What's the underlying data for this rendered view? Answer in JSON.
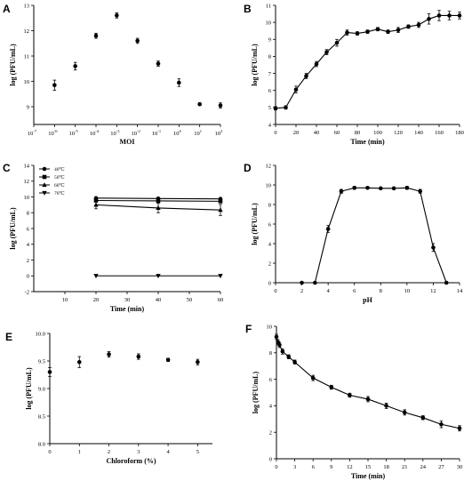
{
  "chart_data": [
    {
      "panel": "A",
      "type": "scatter",
      "xscale": "log",
      "xlabel": "MOI",
      "ylabel": "log (PFU/mL)",
      "xlim": [
        1e-07,
        100
      ],
      "ylim": [
        8.3,
        13
      ],
      "xticks": [
        1e-07,
        1e-06,
        1e-05,
        0.0001,
        0.001,
        0.01,
        0.1,
        1,
        10,
        100
      ],
      "xtick_labels": [
        [
          "10",
          "-7"
        ],
        [
          "10",
          "-6"
        ],
        [
          "10",
          "-5"
        ],
        [
          "10",
          "-4"
        ],
        [
          "10",
          "-3"
        ],
        [
          "10",
          "-2"
        ],
        [
          "10",
          "-1"
        ],
        [
          "10",
          "0"
        ],
        [
          "10",
          "1"
        ],
        [
          "10",
          "2"
        ]
      ],
      "yticks": [
        9,
        10,
        11,
        12,
        13
      ],
      "x": [
        1e-06,
        1e-05,
        0.0001,
        0.001,
        0.01,
        0.1,
        1,
        10,
        100
      ],
      "y": [
        9.85,
        10.6,
        11.8,
        12.6,
        11.6,
        10.7,
        9.95,
        9.1,
        9.05
      ],
      "err": [
        0.2,
        0.15,
        0.1,
        0.1,
        0.1,
        0.1,
        0.15,
        0.05,
        0.1
      ]
    },
    {
      "panel": "B",
      "type": "line",
      "xlabel": "Time (min)",
      "ylabel": "log (PFU/mL)",
      "xlim": [
        0,
        180
      ],
      "ylim": [
        4,
        11
      ],
      "xticks": [
        0,
        20,
        40,
        60,
        80,
        100,
        120,
        140,
        160,
        180
      ],
      "yticks": [
        4,
        5,
        6,
        7,
        8,
        9,
        10,
        11
      ],
      "x": [
        0,
        10,
        20,
        30,
        40,
        50,
        60,
        70,
        80,
        90,
        100,
        110,
        120,
        130,
        140,
        150,
        160,
        170,
        180
      ],
      "y": [
        4.95,
        5.0,
        6.05,
        6.85,
        7.55,
        8.25,
        8.8,
        9.4,
        9.35,
        9.45,
        9.6,
        9.45,
        9.55,
        9.75,
        9.85,
        10.2,
        10.4,
        10.4,
        10.4
      ],
      "err": [
        0.1,
        0.1,
        0.2,
        0.15,
        0.15,
        0.15,
        0.2,
        0.15,
        0.1,
        0.1,
        0.1,
        0.1,
        0.15,
        0.1,
        0.15,
        0.3,
        0.3,
        0.25,
        0.2
      ]
    },
    {
      "panel": "C",
      "type": "line",
      "xlabel": "Time (min)",
      "ylabel": "log (PFU/mL)",
      "xlim": [
        0,
        60
      ],
      "ylim": [
        -2,
        14
      ],
      "xticks": [
        10,
        20,
        30,
        40,
        50,
        60
      ],
      "yticks": [
        -2,
        0,
        2,
        4,
        6,
        8,
        10,
        12,
        14
      ],
      "x": [
        20,
        40,
        60
      ],
      "series": [
        {
          "name": "40℃",
          "marker": "circle",
          "values": [
            9.85,
            9.8,
            9.75
          ],
          "err": [
            0.1,
            0.1,
            0.1
          ]
        },
        {
          "name": "50℃",
          "marker": "square",
          "values": [
            9.55,
            9.5,
            9.45
          ],
          "err": [
            0.1,
            0.1,
            0.1
          ]
        },
        {
          "name": "60℃",
          "marker": "triangle-up",
          "values": [
            9.0,
            8.6,
            8.35
          ],
          "err": [
            0.5,
            0.6,
            0.7
          ]
        },
        {
          "name": "70℃",
          "marker": "triangle-down",
          "values": [
            0,
            0,
            0
          ],
          "err": [
            0,
            0,
            0
          ]
        }
      ],
      "legend": "top-left"
    },
    {
      "panel": "D",
      "type": "line",
      "xlabel": "pH",
      "ylabel": "log (PFU/mL)",
      "xlim": [
        0,
        14
      ],
      "ylim": [
        0,
        12
      ],
      "xticks": [
        0,
        2,
        4,
        6,
        8,
        10,
        12,
        14
      ],
      "yticks": [
        0,
        2,
        4,
        6,
        8,
        10,
        12
      ],
      "x": [
        2,
        3,
        4,
        5,
        6,
        7,
        8,
        9,
        10,
        11,
        12,
        13
      ],
      "y": [
        0,
        0,
        5.5,
        9.35,
        9.7,
        9.7,
        9.65,
        9.65,
        9.7,
        9.35,
        3.6,
        0
      ],
      "err": [
        0,
        0,
        0.35,
        0.2,
        0.15,
        0.1,
        0.1,
        0.1,
        0.15,
        0.2,
        0.4,
        0
      ]
    },
    {
      "panel": "E",
      "type": "scatter",
      "xlabel": "Chloroform (%)",
      "ylabel": "log (PFU/mL)",
      "xlim": [
        0,
        5.5
      ],
      "ylim": [
        8.0,
        10.0
      ],
      "xticks": [
        0,
        1,
        2,
        3,
        4,
        5
      ],
      "yticks": [
        8.0,
        8.5,
        9.0,
        9.5,
        10.0
      ],
      "ytick_labels": [
        "8.0",
        "8.5",
        "9.0",
        "9.5",
        "10.0"
      ],
      "x": [
        0,
        1,
        2,
        3,
        4,
        5
      ],
      "y": [
        9.3,
        9.48,
        9.62,
        9.58,
        9.52,
        9.48
      ],
      "err": [
        0.08,
        0.1,
        0.05,
        0.05,
        0.03,
        0.05
      ]
    },
    {
      "panel": "F",
      "type": "line",
      "xlabel": "Time (min)",
      "ylabel": "log (PFU/mL)",
      "xlim": [
        0,
        30
      ],
      "ylim": [
        0,
        10
      ],
      "xticks": [
        0,
        3,
        6,
        9,
        12,
        15,
        18,
        21,
        24,
        27,
        30
      ],
      "yticks": [
        0,
        2,
        4,
        6,
        8,
        10
      ],
      "x": [
        0,
        0.25,
        0.5,
        1,
        2,
        3,
        6,
        9,
        12,
        15,
        18,
        21,
        24,
        27,
        30
      ],
      "y": [
        9.2,
        8.8,
        8.6,
        8.1,
        7.7,
        7.3,
        6.1,
        5.4,
        4.8,
        4.5,
        4.0,
        3.5,
        3.1,
        2.6,
        2.3
      ],
      "err": [
        0.2,
        0.2,
        0.2,
        0.2,
        0.15,
        0.15,
        0.2,
        0.15,
        0.15,
        0.2,
        0.2,
        0.2,
        0.15,
        0.25,
        0.2
      ]
    }
  ]
}
